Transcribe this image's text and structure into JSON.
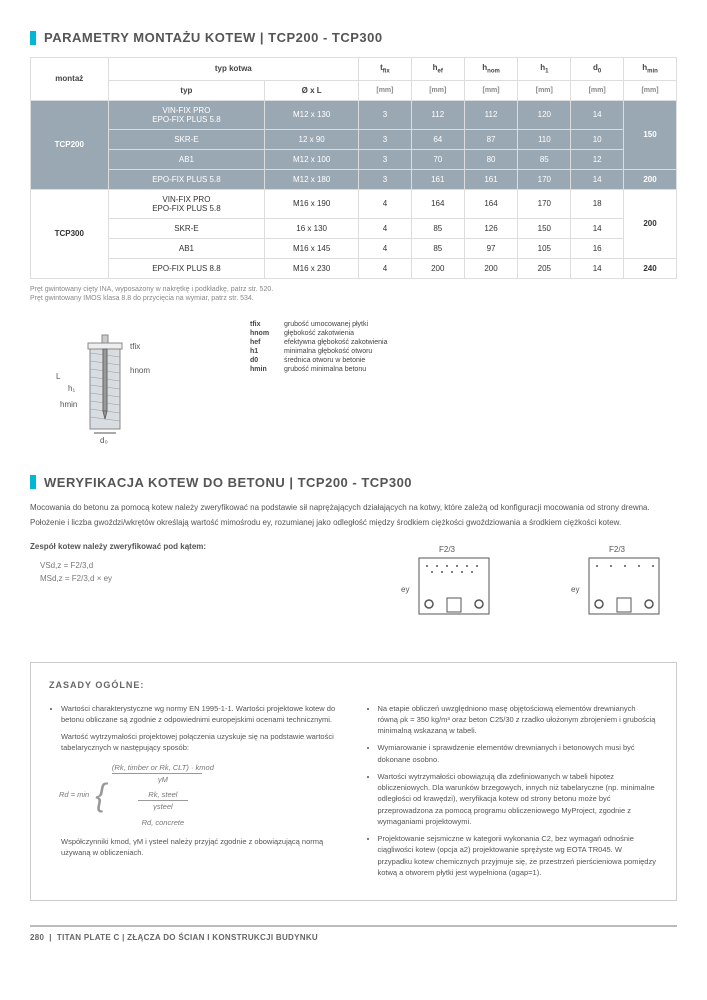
{
  "section1": {
    "title": "PARAMETRY MONTAŻU KOTEW | TCP200 - TCP300"
  },
  "table": {
    "header": {
      "montaz": "montaż",
      "typ_kotwa": "typ kotwa",
      "typ": "typ",
      "oxl": "Ø x L",
      "tfix": "tfix",
      "hef": "hef",
      "hnom": "hnom",
      "h1": "h1",
      "d0": "d0",
      "hmin": "hmin",
      "mm": "[mm]"
    },
    "groups": [
      {
        "name": "TCP200",
        "dark": true,
        "rows": [
          {
            "typ": "VIN-FIX PRO\nEPO-FIX PLUS 5.8",
            "oxl": "M12 x 130",
            "tfix": "3",
            "hef": "112",
            "hnom": "112",
            "h1": "120",
            "d0": "14",
            "hmin_span": "150"
          },
          {
            "typ": "SKR-E",
            "oxl": "12 x 90",
            "tfix": "3",
            "hef": "64",
            "hnom": "87",
            "h1": "110",
            "d0": "10"
          },
          {
            "typ": "AB1",
            "oxl": "M12 x 100",
            "tfix": "3",
            "hef": "70",
            "hnom": "80",
            "h1": "85",
            "d0": "12"
          },
          {
            "typ": "EPO-FIX PLUS 5.8",
            "oxl": "M12 x 180",
            "tfix": "3",
            "hef": "161",
            "hnom": "161",
            "h1": "170",
            "d0": "14",
            "hmin_single": "200"
          }
        ]
      },
      {
        "name": "TCP300",
        "dark": false,
        "rows": [
          {
            "typ": "VIN-FIX PRO\nEPO-FIX PLUS 5.8",
            "oxl": "M16 x 190",
            "tfix": "4",
            "hef": "164",
            "hnom": "164",
            "h1": "170",
            "d0": "18",
            "hmin_span": "200"
          },
          {
            "typ": "SKR-E",
            "oxl": "16 x 130",
            "tfix": "4",
            "hef": "85",
            "hnom": "126",
            "h1": "150",
            "d0": "14"
          },
          {
            "typ": "AB1",
            "oxl": "M16 x 145",
            "tfix": "4",
            "hef": "85",
            "hnom": "97",
            "h1": "105",
            "d0": "16"
          },
          {
            "typ": "EPO-FIX PLUS 8.8",
            "oxl": "M16 x 230",
            "tfix": "4",
            "hef": "200",
            "hnom": "200",
            "h1": "205",
            "d0": "14",
            "hmin_single": "240"
          }
        ]
      }
    ],
    "footnotes": [
      "Pręt gwintowany cięty INA, wyposażony w nakrętkę i podkładkę, patrz str. 520.",
      "Pręt gwintowany IMOS klasa 8.8 do przycięcia na wymiar, patrz str. 534."
    ]
  },
  "legend": {
    "items": [
      {
        "sym": "tfix",
        "txt": "grubość umocowanej płytki"
      },
      {
        "sym": "hnom",
        "txt": "głębokość zakotwienia"
      },
      {
        "sym": "hef",
        "txt": "efektywna głębokość zakotwienia"
      },
      {
        "sym": "h1",
        "txt": "minimalna głębokość otworu"
      },
      {
        "sym": "d0",
        "txt": "średnica otworu w betonie"
      },
      {
        "sym": "hmin",
        "txt": "grubość minimalna betonu"
      }
    ],
    "diag_labels": {
      "L": "L",
      "h1": "h1",
      "hmin": "hmin",
      "d0": "d0",
      "tfix": "tfix",
      "hnom": "hnom"
    }
  },
  "section2": {
    "title": "WERYFIKACJA KOTEW DO BETONU | TCP200 - TCP300",
    "p1": "Mocowania do betonu za pomocą kotew należy zweryfikować na podstawie sił naprężających działających na kotwy, które zależą od konfiguracji mocowania od strony drewna.",
    "p2": "Położenie i liczba gwoździ/wkrętów określają wartość mimośrodu ey, rozumianej jako odległość między środkiem ciężkości gwoździowania a środkiem ciężkości kotew."
  },
  "formulas": {
    "heading": "Zespół kotew należy zweryfikować pod kątem:",
    "eq1": "VSd,z  =  F2/3,d",
    "eq2": "MSd,z  =  F2/3,d × ey",
    "lbl1": "F2/3",
    "lbl2": "ey"
  },
  "rules": {
    "title": "ZASADY OGÓLNE:",
    "left": {
      "b1": "Wartości charakterystyczne wg normy EN 1995-1-1. Wartości projektowe kotew do betonu obliczane są zgodnie z odpowiednimi europejskimi ocenami technicznymi.",
      "p1": "Wartość wytrzymałości projektowej połączenia uzyskuje się na podstawie wartości tabelarycznych w następujący sposób:",
      "rd": "Rd = min",
      "f1": "(Rk, timber or Rk, CLT) · kmod",
      "f1d": "γM",
      "f2": "Rk, steel",
      "f2d": "γsteel",
      "f3": "Rd, concrete",
      "p2": "Współczynniki kmod, γM i γsteel należy przyjąć zgodnie z obowiązującą normą używaną w obliczeniach."
    },
    "right": {
      "b1": "Na etapie obliczeń uwzględniono masę objętościową elementów drewnianych równą ρk = 350 kg/m³ oraz beton C25/30 z rzadko ułożonym zbrojeniem i grubością minimalną wskazaną w tabeli.",
      "b2": "Wymiarowanie i sprawdzenie elementów drewnianych i betonowych musi być dokonane osobno.",
      "b3": "Wartości wytrzymałości obowiązują dla zdefiniowanych w tabeli hipotez obliczeniowych. Dla warunków brzegowych, innych niż tabelaryczne (np. minimalne odległości od krawędzi), weryfikacja kotew od strony betonu może być przeprowadzona za pomocą programu obliczeniowego MyProject, zgodnie z wymaganiami projektowymi.",
      "b4": "Projektowanie sejsmiczne w kategorii wykonania C2, bez wymagań odnośnie ciągliwości kotew (opcja a2) projektowanie sprężyste wg EOTA TR045. W przypadku kotew chemicznych przyjmuje się, że przestrzeń pierścieniowa pomiędzy kotwą a otworem płytki jest wypełniona (αgap=1)."
    }
  },
  "footer": {
    "page": "280",
    "text": "TITAN PLATE C  |  ZŁĄCZA DO ŚCIAN  I KONSTRUKCJI BUDYNKU"
  }
}
